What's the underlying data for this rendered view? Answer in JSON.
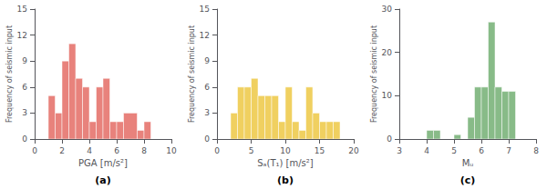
{
  "chart_data": [
    {
      "type": "histogram",
      "bins": [
        0.5,
        1.0,
        1.5,
        2.0,
        2.5,
        3.0,
        3.5,
        4.0,
        4.5,
        5.0,
        5.5,
        6.0,
        6.5,
        7.5,
        8.0,
        8.5,
        9.0
      ],
      "values": [
        0,
        5,
        3,
        9,
        11,
        7,
        6,
        2,
        6,
        7,
        2,
        2,
        3,
        1,
        2,
        0
      ],
      "color": "#e8827c",
      "xlabel": "PGA [m/s²]",
      "ylabel": "Frequency of seismic input",
      "xlim": [
        0,
        10
      ],
      "ylim": [
        0,
        15
      ],
      "xticks": [
        0,
        2,
        4,
        6,
        8,
        10
      ],
      "yticks": [
        0,
        3,
        6,
        9,
        12,
        15
      ],
      "annotation": "(a)"
    },
    {
      "type": "histogram",
      "bins": [
        2,
        3,
        4,
        5,
        6,
        7,
        8,
        9,
        10,
        11,
        12,
        13,
        14,
        15,
        16,
        17,
        18
      ],
      "values": [
        3,
        6,
        6,
        7,
        5,
        5,
        5,
        2,
        6,
        2,
        1,
        6,
        3,
        2,
        2,
        2
      ],
      "color": "#f0d060",
      "xlabel": "Sₐ(T₁) [m/s²]",
      "ylabel": "Frequency of seismic input",
      "xlim": [
        0,
        20
      ],
      "ylim": [
        0,
        15
      ],
      "xticks": [
        0,
        5,
        10,
        15,
        20
      ],
      "yticks": [
        0,
        3,
        6,
        9,
        12,
        15
      ],
      "annotation": "(b)"
    },
    {
      "type": "histogram",
      "bins": [
        3.75,
        4.0,
        4.25,
        4.5,
        4.75,
        5.0,
        5.25,
        5.5,
        5.75,
        6.0,
        6.25,
        6.5,
        6.75,
        7.0,
        7.25,
        7.5
      ],
      "values": [
        0,
        2,
        2,
        0,
        0,
        1,
        0,
        5,
        12,
        12,
        27,
        12,
        11,
        11,
        0
      ],
      "color": "#88bb88",
      "xlabel": "Mᵤ",
      "ylabel": "Frequency of seismic input",
      "xlim": [
        3,
        8
      ],
      "ylim": [
        0,
        30
      ],
      "xticks": [
        3,
        4,
        5,
        6,
        7,
        8
      ],
      "yticks": [
        0,
        10,
        20,
        30
      ],
      "annotation": "(c)"
    }
  ]
}
